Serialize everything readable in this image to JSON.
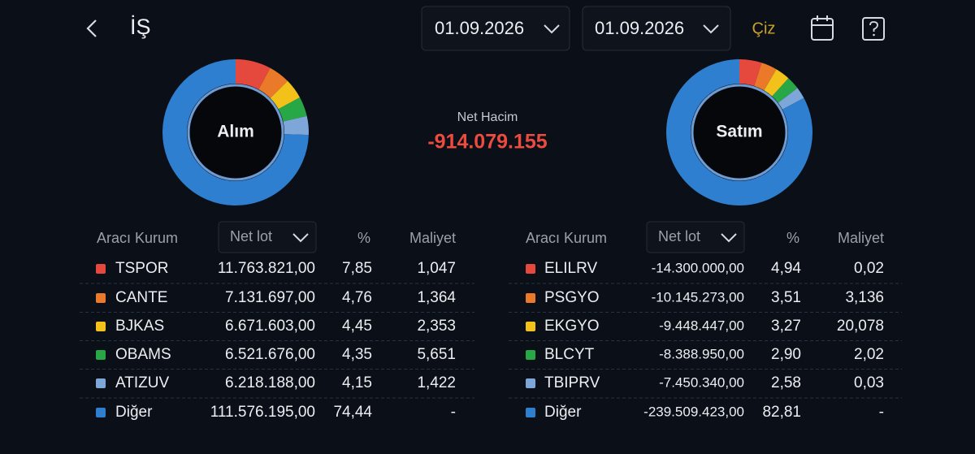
{
  "header": {
    "title": "İŞ",
    "date_from": "01.09.2026",
    "date_to": "01.09.2026",
    "draw": "Çiz"
  },
  "summary": {
    "label": "Net Hacim",
    "value": "-914.079.155"
  },
  "buy": {
    "donut_label": "Alım",
    "columns": [
      "Aracı Kurum",
      "Net lot",
      "%",
      "Maliyet"
    ],
    "rows": [
      {
        "name": "TSPOR",
        "color": "#e5483c",
        "net_lot": "11.763.821,00",
        "pct": {
          "value": 7.85,
          "label": "7,85"
        },
        "cost": "1,047"
      },
      {
        "name": "CANTE",
        "color": "#ea7a2a",
        "net_lot": "7.131.697,00",
        "pct": {
          "value": 4.76,
          "label": "4,76"
        },
        "cost": "1,364"
      },
      {
        "name": "BJKAS",
        "color": "#f2c21b",
        "net_lot": "6.671.603,00",
        "pct": {
          "value": 4.45,
          "label": "4,45"
        },
        "cost": "2,353"
      },
      {
        "name": "OBAMS",
        "color": "#27a745",
        "net_lot": "6.521.676,00",
        "pct": {
          "value": 4.35,
          "label": "4,35"
        },
        "cost": "5,651"
      },
      {
        "name": "ATIZUV",
        "color": "#7ea6d8",
        "net_lot": "6.218.188,00",
        "pct": {
          "value": 4.15,
          "label": "4,15"
        },
        "cost": "1,422"
      },
      {
        "name": "Diğer",
        "color": "#2f7fd0",
        "net_lot": "111.576.195,00",
        "pct": {
          "value": 74.44,
          "label": "74,44"
        },
        "cost": "-"
      }
    ]
  },
  "sell": {
    "donut_label": "Satım",
    "columns": [
      "Aracı Kurum",
      "Net lot",
      "%",
      "Maliyet"
    ],
    "rows": [
      {
        "name": "ELILRV",
        "color": "#e5483c",
        "net_lot": "-14.300.000,00",
        "pct": {
          "value": 4.94,
          "label": "4,94"
        },
        "cost": "0,02"
      },
      {
        "name": "PSGYO",
        "color": "#ea7a2a",
        "net_lot": "-10.145.273,00",
        "pct": {
          "value": 3.51,
          "label": "3,51"
        },
        "cost": "3,136"
      },
      {
        "name": "EKGYO",
        "color": "#f2c21b",
        "net_lot": "-9.448.447,00",
        "pct": {
          "value": 3.27,
          "label": "3,27"
        },
        "cost": "20,078"
      },
      {
        "name": "BLCYT",
        "color": "#27a745",
        "net_lot": "-8.388.950,00",
        "pct": {
          "value": 2.9,
          "label": "2,90"
        },
        "cost": "2,02"
      },
      {
        "name": "TBIPRV",
        "color": "#7ea6d8",
        "net_lot": "-7.450.340,00",
        "pct": {
          "value": 2.58,
          "label": "2,58"
        },
        "cost": "0,03"
      },
      {
        "name": "Diğer",
        "color": "#2f7fd0",
        "net_lot": "-239.509.423,00",
        "pct": {
          "value": 82.81,
          "label": "82,81"
        },
        "cost": "-"
      }
    ]
  }
}
